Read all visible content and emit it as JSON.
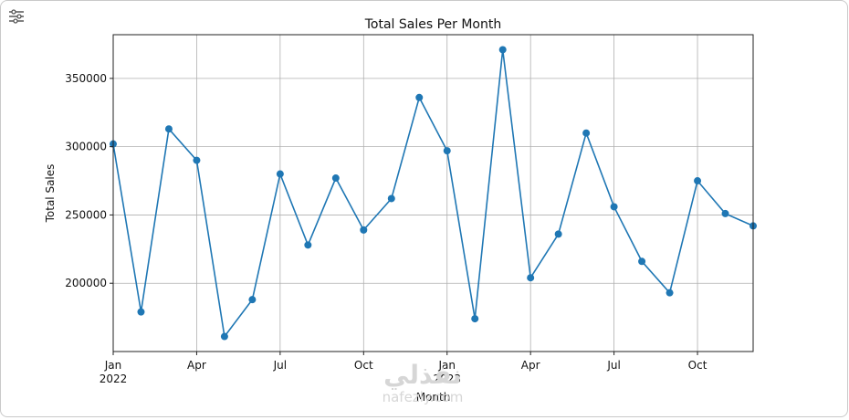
{
  "toolbar": {
    "icon": "filter-settings-icon"
  },
  "watermark": {
    "logo": "نفذلي",
    "url": "nafezly.com"
  },
  "chart_data": {
    "type": "line",
    "title": "Total Sales Per Month",
    "xlabel": "Month",
    "ylabel": "Total Sales",
    "x": [
      "2022-01",
      "2022-02",
      "2022-03",
      "2022-04",
      "2022-05",
      "2022-06",
      "2022-07",
      "2022-08",
      "2022-09",
      "2022-10",
      "2022-11",
      "2022-12",
      "2023-01",
      "2023-02",
      "2023-03",
      "2023-04",
      "2023-05",
      "2023-06",
      "2023-07",
      "2023-08",
      "2023-09",
      "2023-10",
      "2023-11",
      "2023-12"
    ],
    "series": [
      {
        "values": [
          302000,
          179000,
          313000,
          290000,
          161000,
          188000,
          280000,
          228000,
          277000,
          239000,
          262000,
          336000,
          297000,
          174000,
          371000,
          204000,
          236000,
          310000,
          256000,
          216000,
          193000,
          275000,
          251000,
          242000
        ]
      }
    ],
    "yticks": [
      {
        "value": 200000,
        "label": "200000"
      },
      {
        "value": 250000,
        "label": "250000"
      },
      {
        "value": 300000,
        "label": "300000"
      },
      {
        "value": 350000,
        "label": "350000"
      }
    ],
    "xticks": [
      {
        "index": 0,
        "label": "Jan",
        "sublabel": "2022"
      },
      {
        "index": 3,
        "label": "Apr",
        "sublabel": ""
      },
      {
        "index": 6,
        "label": "Jul",
        "sublabel": ""
      },
      {
        "index": 9,
        "label": "Oct",
        "sublabel": ""
      },
      {
        "index": 12,
        "label": "Jan",
        "sublabel": "2023"
      },
      {
        "index": 15,
        "label": "Apr",
        "sublabel": ""
      },
      {
        "index": 18,
        "label": "Jul",
        "sublabel": ""
      },
      {
        "index": 21,
        "label": "Oct",
        "sublabel": ""
      }
    ],
    "ylim": [
      150000,
      382000
    ],
    "grid": true,
    "line_color": "#1f77b4"
  }
}
